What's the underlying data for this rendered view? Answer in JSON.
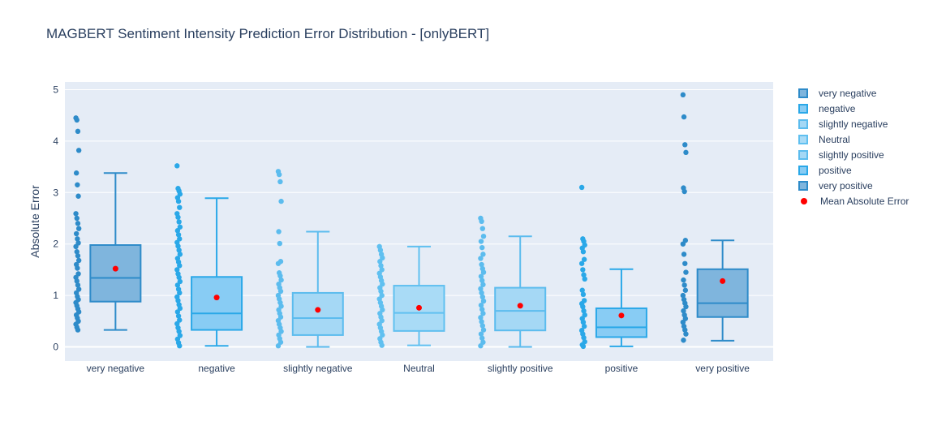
{
  "chart_data": {
    "type": "box",
    "title": "MAGBERT Sentiment Intensity Prediction Error Distribution - [onlyBERT]",
    "xlabel": "",
    "ylabel": "Absolute Error",
    "ylim": [
      -0.27,
      5.15
    ],
    "yticks": [
      0,
      1,
      2,
      3,
      4,
      5
    ],
    "grid": true,
    "legend_position": "right",
    "categories": [
      "very negative",
      "negative",
      "slightly negative",
      "Neutral",
      "slightly positive",
      "positive",
      "very positive"
    ],
    "series": [
      {
        "name": "very negative",
        "color": "#2e8bc9",
        "fill": "#7fb5dd",
        "min": 0.33,
        "q1": 0.88,
        "median": 1.34,
        "q3": 1.98,
        "max": 3.38,
        "mean": 1.52,
        "outliers": [
          4.45,
          4.41,
          4.19,
          3.82,
          3.38,
          3.15,
          2.93,
          2.59,
          2.5,
          2.4,
          2.3,
          2.2,
          2.1,
          2.02,
          1.95,
          1.85,
          1.77,
          1.68,
          1.6,
          1.53,
          1.42,
          1.35,
          1.28,
          1.2,
          1.12,
          1.05,
          0.98,
          0.92,
          0.86,
          0.8,
          0.74,
          0.68,
          0.62,
          0.56,
          0.5,
          0.44,
          0.38,
          0.33
        ]
      },
      {
        "name": "negative",
        "color": "#2aa8e8",
        "fill": "#88ccf4",
        "min": 0.02,
        "q1": 0.33,
        "median": 0.65,
        "q3": 1.36,
        "max": 2.89,
        "mean": 0.96,
        "outliers": [
          3.52,
          3.08,
          3.03,
          2.97,
          2.9,
          2.83,
          2.71,
          2.59,
          2.52,
          2.43,
          2.33,
          2.26,
          2.18,
          2.1,
          2.03,
          1.96,
          1.88,
          1.8,
          1.72,
          1.65,
          1.58,
          1.5,
          1.42,
          1.35,
          1.27,
          1.2,
          1.12,
          1.05,
          0.97,
          0.9,
          0.82,
          0.75,
          0.68,
          0.6,
          0.52,
          0.45,
          0.37,
          0.3,
          0.22,
          0.15,
          0.08,
          0.02
        ]
      },
      {
        "name": "slightly negative",
        "color": "#5cbcee",
        "fill": "#a5d8f5",
        "min": 0.0,
        "q1": 0.23,
        "median": 0.56,
        "q3": 1.05,
        "max": 2.24,
        "mean": 0.72,
        "outliers": [
          3.41,
          3.35,
          3.21,
          2.83,
          2.24,
          2.01,
          1.66,
          1.62,
          1.44,
          1.38,
          1.3,
          1.22,
          1.15,
          1.08,
          1.0,
          0.93,
          0.86,
          0.79,
          0.72,
          0.65,
          0.58,
          0.51,
          0.44,
          0.37,
          0.3,
          0.23,
          0.16,
          0.09,
          0.02
        ]
      },
      {
        "name": "Neutral",
        "color": "#60c0f0",
        "fill": "#a9dbf6",
        "min": 0.03,
        "q1": 0.31,
        "median": 0.66,
        "q3": 1.19,
        "max": 1.95,
        "mean": 0.76,
        "outliers": [
          1.95,
          1.88,
          1.8,
          1.73,
          1.66,
          1.58,
          1.5,
          1.43,
          1.36,
          1.29,
          1.22,
          1.15,
          1.08,
          1.0,
          0.93,
          0.86,
          0.79,
          0.72,
          0.65,
          0.58,
          0.51,
          0.44,
          0.37,
          0.3,
          0.23,
          0.16,
          0.09,
          0.03
        ]
      },
      {
        "name": "slightly positive",
        "color": "#5cbcee",
        "fill": "#a5d8f5",
        "min": 0.0,
        "q1": 0.32,
        "median": 0.7,
        "q3": 1.15,
        "max": 2.15,
        "mean": 0.8,
        "outliers": [
          2.5,
          2.44,
          2.3,
          2.15,
          2.05,
          1.93,
          1.8,
          1.72,
          1.6,
          1.52,
          1.45,
          1.37,
          1.29,
          1.21,
          1.13,
          1.05,
          0.97,
          0.89,
          0.81,
          0.73,
          0.65,
          0.57,
          0.49,
          0.41,
          0.33,
          0.25,
          0.17,
          0.09,
          0.02
        ]
      },
      {
        "name": "positive",
        "color": "#2aa8e8",
        "fill": "#88ccf4",
        "min": 0.01,
        "q1": 0.19,
        "median": 0.38,
        "q3": 0.75,
        "max": 1.51,
        "mean": 0.61,
        "outliers": [
          3.1,
          2.1,
          2.05,
          1.98,
          1.92,
          1.85,
          1.7,
          1.62,
          1.5,
          1.4,
          1.32,
          1.1,
          1.02,
          0.9,
          0.84,
          0.78,
          0.7,
          0.62,
          0.55,
          0.48,
          0.4,
          0.32,
          0.25,
          0.18,
          0.1,
          0.04,
          0.01
        ]
      },
      {
        "name": "very positive",
        "color": "#2e8bc9",
        "fill": "#7fb5dd",
        "min": 0.12,
        "q1": 0.58,
        "median": 0.85,
        "q3": 1.51,
        "max": 2.07,
        "mean": 1.28,
        "outliers": [
          4.9,
          4.47,
          3.93,
          3.78,
          3.09,
          3.02,
          2.07,
          2.0,
          1.8,
          1.62,
          1.45,
          1.3,
          1.2,
          1.1,
          1.0,
          0.92,
          0.85,
          0.78,
          0.7,
          0.62,
          0.55,
          0.48,
          0.4,
          0.33,
          0.25,
          0.13
        ]
      }
    ],
    "mean_series": {
      "name": "Mean Absolute Error",
      "color": "#ff0000"
    }
  }
}
